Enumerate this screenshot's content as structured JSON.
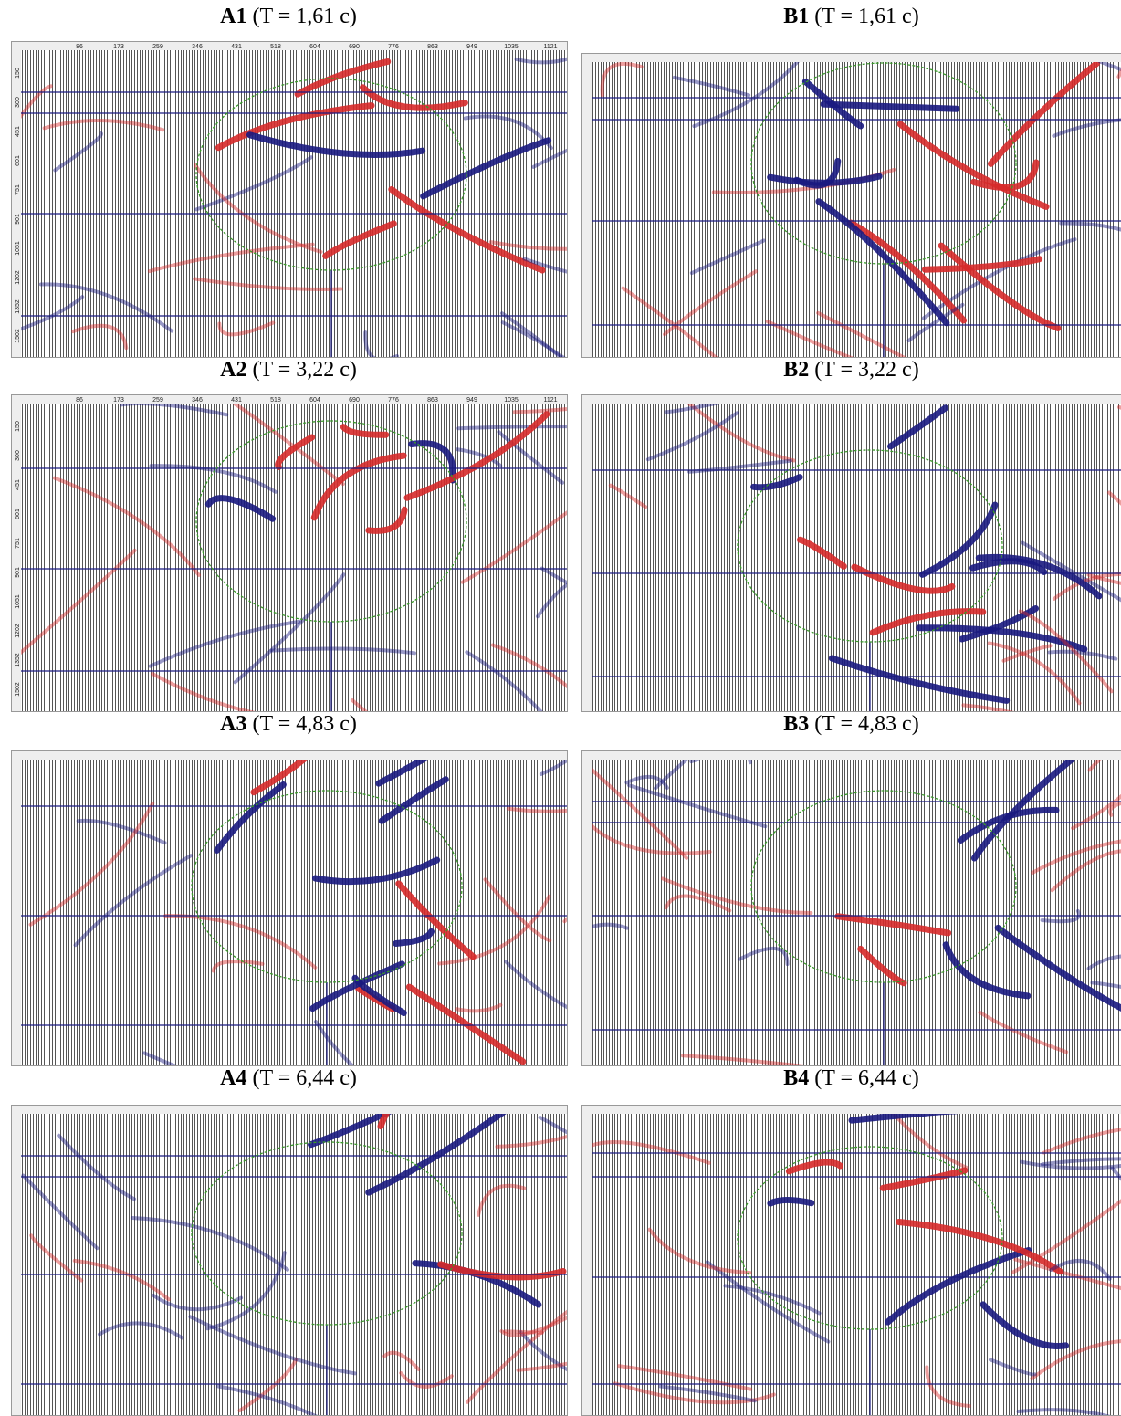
{
  "panels": [
    {
      "id": "A1",
      "caption": "(T = 1,61 c)"
    },
    {
      "id": "B1",
      "caption": "(T = 1,61 c)"
    },
    {
      "id": "A2",
      "caption": "(T = 3,22 c)"
    },
    {
      "id": "B2",
      "caption": "(T = 3,22 c)"
    },
    {
      "id": "A3",
      "caption": "(T = 4,83 c)"
    },
    {
      "id": "B3",
      "caption": "(T = 4,83 c)"
    },
    {
      "id": "A4",
      "caption": "(T = 6,44 c)"
    },
    {
      "id": "B4",
      "caption": "(T = 6,44 c)"
    }
  ],
  "axes": {
    "top_ticks": [
      "86",
      "173",
      "259",
      "346",
      "431",
      "518",
      "604",
      "690",
      "776",
      "863",
      "949",
      "1035",
      "1121"
    ],
    "left_ticks": [
      "150",
      "300",
      "451",
      "601",
      "751",
      "901",
      "1051",
      "1202",
      "1352",
      "1502"
    ]
  }
}
